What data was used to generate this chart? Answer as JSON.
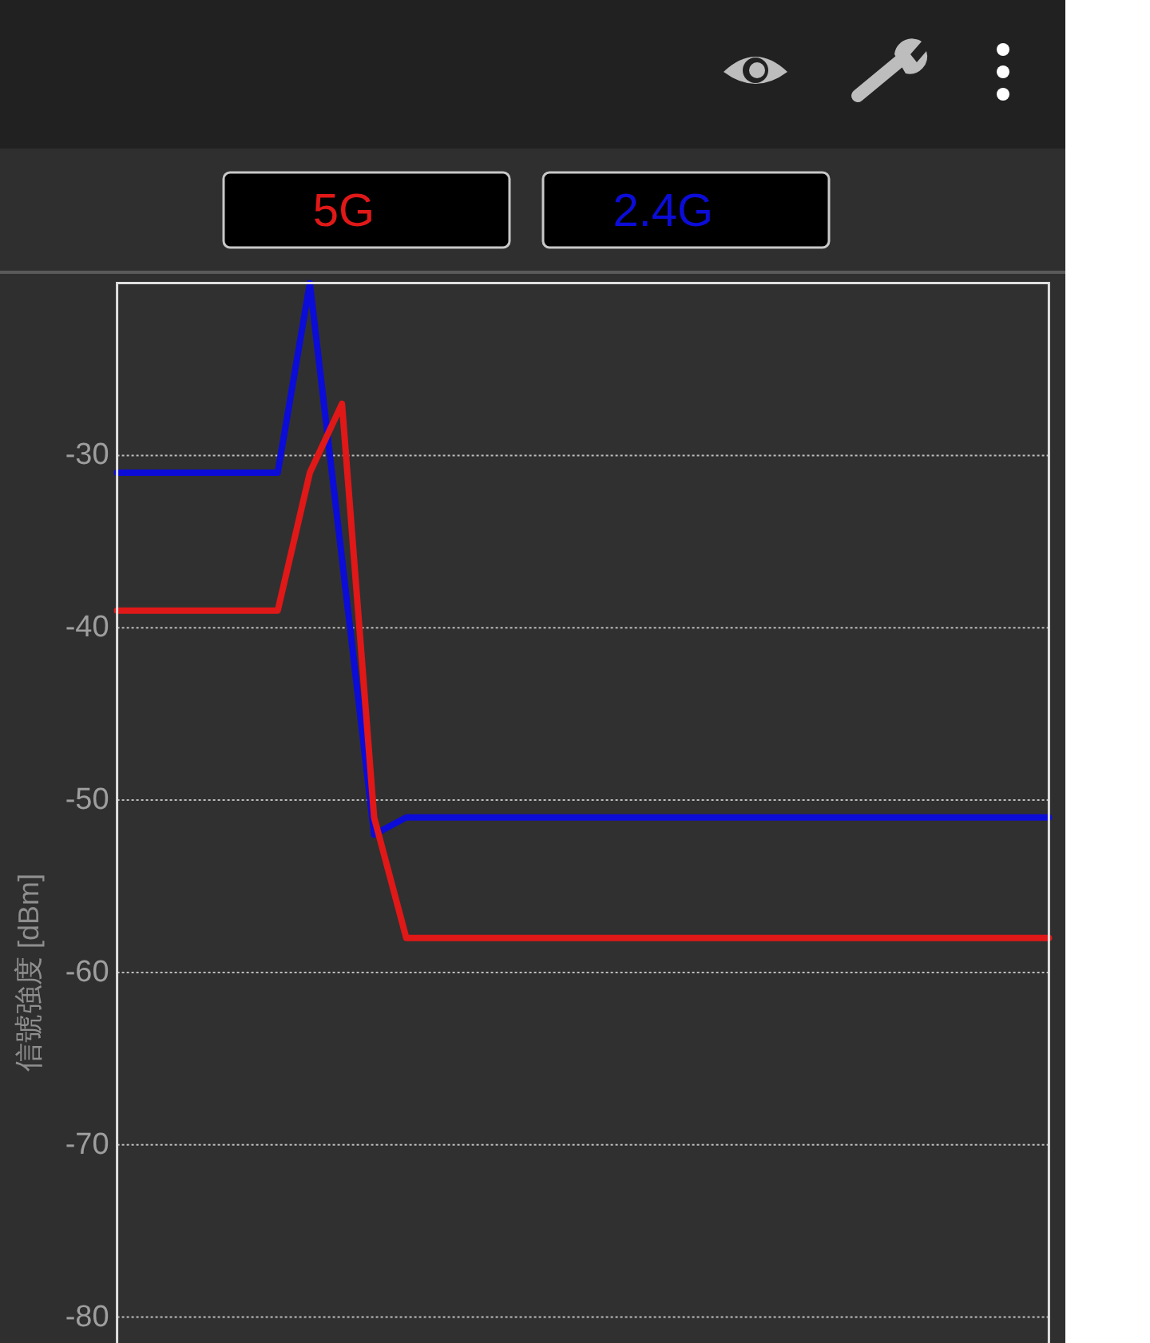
{
  "chart_data": {
    "type": "line",
    "ylabel": "信號強度 [dBm]",
    "categories": [
      null,
      null,
      null,
      null,
      null,
      null,
      null,
      null,
      null,
      null,
      null,
      null,
      null,
      null,
      null,
      null,
      null,
      null,
      null,
      null,
      null,
      null,
      null,
      null,
      null,
      null,
      null,
      null,
      null,
      null
    ],
    "series": [
      {
        "name": "5G",
        "color": "#e01818",
        "values": [
          -39,
          -39,
          -39,
          -39,
          -39,
          -39,
          -31,
          -27,
          -51,
          -58,
          -58,
          -58,
          -58,
          -58,
          -58,
          -58,
          -58,
          -58,
          -58,
          -58,
          -58,
          -58,
          -58,
          -58,
          -58,
          -58,
          -58,
          -58,
          -58,
          -58
        ]
      },
      {
        "name": "2.4G",
        "color": "#0c0cd8",
        "values": [
          -31,
          -31,
          -31,
          -31,
          -31,
          -31,
          -20,
          -36,
          -52,
          -51,
          -51,
          -51,
          -51,
          -51,
          -51,
          -51,
          -51,
          -51,
          -51,
          -51,
          -51,
          -51,
          -51,
          -51,
          -51,
          -51,
          -51,
          -51,
          -51,
          -51
        ]
      }
    ],
    "ylim": [
      -81.5,
      -20
    ],
    "yticks": [
      -30,
      -40,
      -50,
      -60,
      -70,
      -80
    ],
    "grid": "y",
    "legend": "top",
    "tick_labels": "y",
    "line_style": "solid"
  }
}
